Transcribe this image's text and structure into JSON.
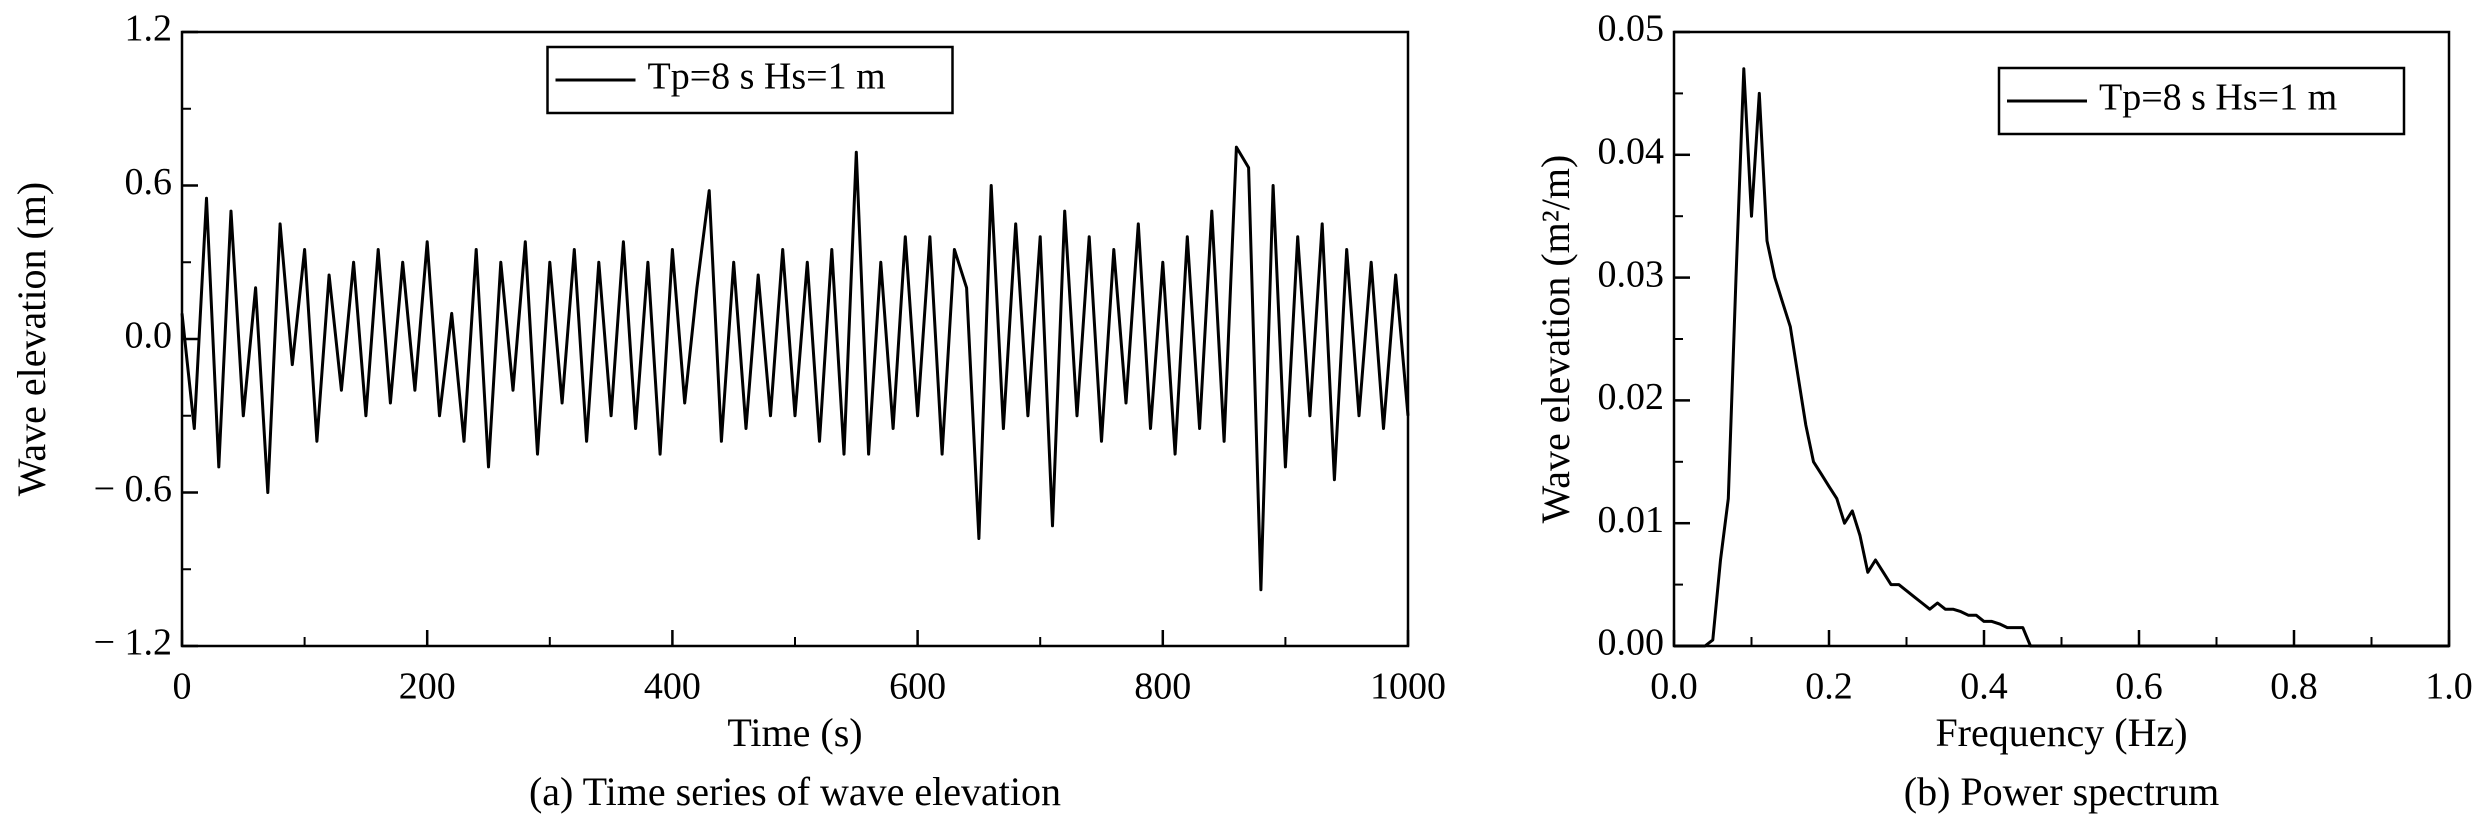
{
  "chart_data": [
    {
      "type": "line",
      "xlabel": "Time (s)",
      "ylabel": "Wave elevation (m)",
      "caption": "(a) Time series of wave elevation",
      "x": [
        0,
        10,
        20,
        30,
        40,
        50,
        60,
        70,
        80,
        90,
        100,
        110,
        120,
        130,
        140,
        150,
        160,
        170,
        180,
        190,
        200,
        210,
        220,
        230,
        240,
        250,
        260,
        270,
        280,
        290,
        300,
        310,
        320,
        330,
        340,
        350,
        360,
        370,
        380,
        390,
        400,
        410,
        420,
        430,
        440,
        450,
        460,
        470,
        480,
        490,
        500,
        510,
        520,
        530,
        540,
        550,
        560,
        570,
        580,
        590,
        600,
        610,
        620,
        630,
        640,
        650,
        660,
        670,
        680,
        690,
        700,
        710,
        720,
        730,
        740,
        750,
        760,
        770,
        780,
        790,
        800,
        810,
        820,
        830,
        840,
        850,
        860,
        870,
        880,
        890,
        900,
        910,
        920,
        930,
        940,
        950,
        960,
        970,
        980,
        990,
        1000
      ],
      "series": [
        {
          "name": "Tp=8 s Hs=1 m",
          "color": "#000000",
          "values": [
            0.1,
            -0.35,
            0.55,
            -0.5,
            0.5,
            -0.3,
            0.2,
            -0.6,
            0.45,
            -0.1,
            0.35,
            -0.4,
            0.25,
            -0.2,
            0.3,
            -0.3,
            0.35,
            -0.25,
            0.3,
            -0.2,
            0.38,
            -0.3,
            0.1,
            -0.4,
            0.35,
            -0.5,
            0.3,
            -0.2,
            0.38,
            -0.45,
            0.3,
            -0.25,
            0.35,
            -0.4,
            0.3,
            -0.3,
            0.38,
            -0.35,
            0.3,
            -0.45,
            0.35,
            -0.25,
            0.2,
            0.58,
            -0.4,
            0.3,
            -0.35,
            0.25,
            -0.3,
            0.35,
            -0.3,
            0.3,
            -0.4,
            0.35,
            -0.45,
            0.73,
            -0.45,
            0.3,
            -0.35,
            0.4,
            -0.3,
            0.4,
            -0.45,
            0.35,
            0.2,
            -0.78,
            0.6,
            -0.35,
            0.45,
            -0.3,
            0.4,
            -0.73,
            0.5,
            -0.3,
            0.4,
            -0.4,
            0.35,
            -0.25,
            0.45,
            -0.35,
            0.3,
            -0.45,
            0.4,
            -0.35,
            0.5,
            -0.4,
            0.75,
            0.67,
            -0.98,
            0.6,
            -0.5,
            0.4,
            -0.3,
            0.45,
            -0.55,
            0.35,
            -0.3,
            0.3,
            -0.35,
            0.25,
            -0.3
          ]
        }
      ],
      "xlim": [
        0,
        1000
      ],
      "xticks": [
        0,
        200,
        400,
        600,
        800,
        1000
      ],
      "ylim": [
        -1.2,
        1.2
      ],
      "yticks": [
        {
          "value": -1.2,
          "label": "− 1.2"
        },
        {
          "value": -0.6,
          "label": "− 0.6"
        },
        {
          "value": 0,
          "label": "0.0"
        },
        0.6,
        1.2
      ],
      "legend": "upper center"
    },
    {
      "type": "line",
      "xlabel": "Frequency (Hz)",
      "ylabel": "Wave elevation (m²/m)",
      "caption": "(b) Power spectrum",
      "x": [
        0,
        0.01,
        0.02,
        0.03,
        0.04,
        0.05,
        0.06,
        0.07,
        0.08,
        0.09,
        0.1,
        0.11,
        0.12,
        0.13,
        0.14,
        0.15,
        0.16,
        0.17,
        0.18,
        0.19,
        0.2,
        0.21,
        0.22,
        0.23,
        0.24,
        0.25,
        0.26,
        0.27,
        0.28,
        0.29,
        0.3,
        0.31,
        0.32,
        0.33,
        0.34,
        0.35,
        0.36,
        0.37,
        0.38,
        0.39,
        0.4,
        0.41,
        0.42,
        0.43,
        0.44,
        0.45,
        0.46,
        0.47,
        0.48,
        0.49,
        0.5,
        0.51,
        0.52,
        0.53,
        0.54,
        0.55,
        0.56,
        0.57,
        0.58,
        0.59,
        0.6,
        0.61,
        0.62,
        0.63,
        0.64,
        0.65,
        0.66,
        0.67,
        0.68,
        0.69,
        0.7,
        0.71,
        0.72,
        0.73,
        0.74,
        0.75,
        0.76,
        0.77,
        0.78,
        0.79,
        0.8,
        0.81,
        0.82,
        0.83,
        0.84,
        0.85,
        0.86,
        0.87,
        0.88,
        0.89,
        0.9,
        0.91,
        0.92,
        0.93,
        0.94,
        0.95,
        0.96,
        0.97,
        0.98,
        0.99,
        1
      ],
      "series": [
        {
          "name": "Tp=8 s Hs=1 m",
          "color": "#000000",
          "values": [
            0,
            0,
            0,
            0,
            0,
            0.0005,
            0.007,
            0.012,
            0.03,
            0.047,
            0.035,
            0.045,
            0.033,
            0.03,
            0.028,
            0.026,
            0.022,
            0.018,
            0.015,
            0.014,
            0.013,
            0.012,
            0.01,
            0.011,
            0.009,
            0.006,
            0.007,
            0.006,
            0.005,
            0.005,
            0.0045,
            0.004,
            0.0035,
            0.003,
            0.0035,
            0.003,
            0.003,
            0.0028,
            0.0025,
            0.0025,
            0.002,
            0.002,
            0.0018,
            0.0015,
            0.0015,
            0.0015,
            0,
            0,
            0,
            0,
            0,
            0,
            0,
            0,
            0,
            0,
            0,
            0,
            0,
            0,
            0,
            0,
            0,
            0,
            0,
            0,
            0,
            0,
            0,
            0,
            0,
            0,
            0,
            0,
            0,
            0,
            0,
            0,
            0,
            0,
            0,
            0,
            0,
            0,
            0,
            0,
            0,
            0,
            0,
            0,
            0,
            0,
            0,
            0,
            0,
            0,
            0,
            0,
            0,
            0,
            0
          ]
        }
      ],
      "xlim": [
        0,
        1
      ],
      "xticks": [
        {
          "value": 0,
          "label": "0.0"
        },
        0.2,
        0.4,
        0.6,
        0.8,
        {
          "value": 1,
          "label": "1.0"
        }
      ],
      "ylim": [
        0,
        0.05
      ],
      "yticks": [
        {
          "value": 0,
          "label": "0.00"
        },
        0.01,
        0.02,
        0.03,
        0.04,
        0.05
      ],
      "legend": "upper right"
    }
  ]
}
